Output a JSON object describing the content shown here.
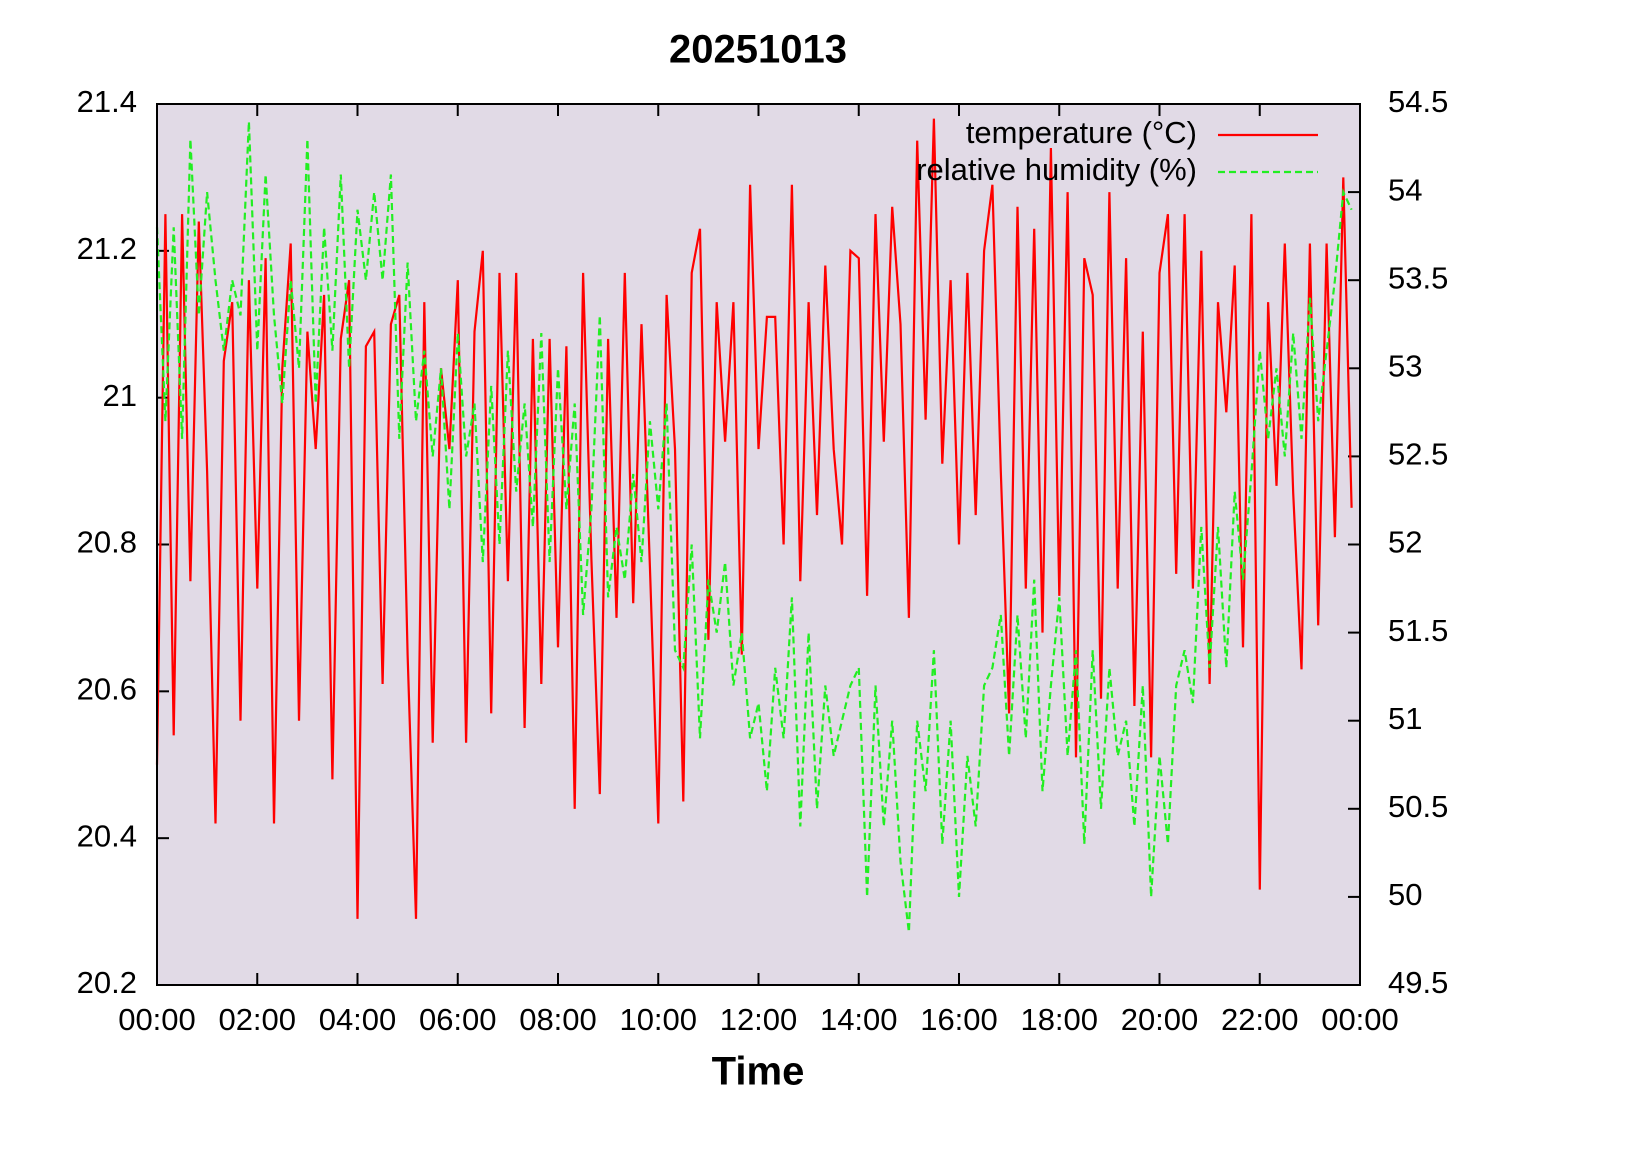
{
  "chart_data": {
    "type": "line",
    "title": "20251013",
    "xlabel": "Time",
    "legend": "upper right",
    "x": [
      "00:00",
      "00:10",
      "00:20",
      "00:30",
      "00:40",
      "00:50",
      "01:00",
      "01:10",
      "01:20",
      "01:30",
      "01:40",
      "01:50",
      "02:00",
      "02:10",
      "02:20",
      "02:30",
      "02:40",
      "02:50",
      "03:00",
      "03:10",
      "03:20",
      "03:30",
      "03:40",
      "03:50",
      "04:00",
      "04:10",
      "04:20",
      "04:30",
      "04:40",
      "04:50",
      "05:00",
      "05:10",
      "05:20",
      "05:30",
      "05:40",
      "05:50",
      "06:00",
      "06:10",
      "06:20",
      "06:30",
      "06:40",
      "06:50",
      "07:00",
      "07:10",
      "07:20",
      "07:30",
      "07:40",
      "07:50",
      "08:00",
      "08:10",
      "08:20",
      "08:30",
      "08:40",
      "08:50",
      "09:00",
      "09:10",
      "09:20",
      "09:30",
      "09:40",
      "09:50",
      "10:00",
      "10:10",
      "10:20",
      "10:30",
      "10:40",
      "10:50",
      "11:00",
      "11:10",
      "11:20",
      "11:30",
      "11:40",
      "11:50",
      "12:00",
      "12:10",
      "12:20",
      "12:30",
      "12:40",
      "12:50",
      "13:00",
      "13:10",
      "13:20",
      "13:30",
      "13:40",
      "13:50",
      "14:00",
      "14:10",
      "14:20",
      "14:30",
      "14:40",
      "14:50",
      "15:00",
      "15:10",
      "15:20",
      "15:30",
      "15:40",
      "15:50",
      "16:00",
      "16:10",
      "16:20",
      "16:30",
      "16:40",
      "16:50",
      "17:00",
      "17:10",
      "17:20",
      "17:30",
      "17:40",
      "17:50",
      "18:00",
      "18:10",
      "18:20",
      "18:30",
      "18:40",
      "18:50",
      "19:00",
      "19:10",
      "19:20",
      "19:30",
      "19:40",
      "19:50",
      "20:00",
      "20:10",
      "20:20",
      "20:30",
      "20:40",
      "20:50",
      "21:00",
      "21:10",
      "21:20",
      "21:30",
      "21:40",
      "21:50",
      "22:00",
      "22:10",
      "22:20",
      "22:30",
      "22:40",
      "22:50",
      "23:00",
      "23:10",
      "23:20",
      "23:30",
      "23:40",
      "23:50"
    ],
    "xlim": [
      "00:00",
      "24:00"
    ],
    "xticks": [
      "00:00",
      "02:00",
      "04:00",
      "06:00",
      "08:00",
      "10:00",
      "12:00",
      "14:00",
      "16:00",
      "18:00",
      "20:00",
      "22:00",
      {
        "value": "24:00",
        "label": "00:00"
      }
    ],
    "ylim": [
      20.2,
      21.4
    ],
    "yticks": [
      20.2,
      20.4,
      20.6,
      20.8,
      21,
      21.2,
      21.4
    ],
    "y2lim": [
      49.5,
      54.5
    ],
    "y2ticks": [
      49.5,
      50,
      50.5,
      51,
      51.5,
      52,
      52.5,
      53,
      53.5,
      54,
      54.5
    ],
    "series": [
      {
        "name": "temperature (°C)",
        "color": "#ff0000",
        "line_style": "solid",
        "values": [
          20.5,
          21.25,
          20.54,
          21.25,
          20.75,
          21.24,
          20.9,
          20.42,
          21.05,
          21.13,
          20.56,
          21.16,
          20.74,
          21.19,
          20.42,
          21.04,
          21.21,
          20.56,
          21.09,
          20.93,
          21.14,
          20.48,
          21.08,
          21.16,
          20.29,
          21.07,
          21.09,
          20.61,
          21.1,
          21.14,
          20.65,
          20.29,
          21.13,
          20.53,
          21.04,
          20.93,
          21.16,
          20.53,
          21.09,
          21.2,
          20.57,
          21.17,
          20.75,
          21.17,
          20.55,
          21.08,
          20.61,
          21.08,
          20.66,
          21.07,
          20.44,
          21.17,
          20.78,
          20.46,
          21.08,
          20.7,
          21.17,
          20.72,
          21.1,
          20.77,
          20.42,
          21.14,
          20.93,
          20.45,
          21.17,
          21.23,
          20.67,
          21.13,
          20.94,
          21.13,
          20.65,
          21.29,
          20.93,
          21.11,
          21.11,
          20.8,
          21.29,
          20.75,
          21.13,
          20.84,
          21.18,
          20.93,
          20.8,
          21.2,
          21.19,
          20.73,
          21.25,
          20.94,
          21.26,
          21.1,
          20.7,
          21.35,
          20.97,
          21.38,
          20.91,
          21.16,
          20.8,
          21.17,
          20.84,
          21.2,
          21.29,
          20.9,
          20.57,
          21.26,
          20.74,
          21.23,
          20.68,
          21.34,
          20.73,
          21.28,
          20.51,
          21.19,
          21.14,
          20.59,
          21.28,
          20.74,
          21.19,
          20.58,
          21.09,
          20.51,
          21.17,
          21.25,
          20.76,
          21.25,
          20.74,
          21.2,
          20.61,
          21.13,
          20.98,
          21.18,
          20.66,
          21.25,
          20.33,
          21.13,
          20.88,
          21.21,
          20.87,
          20.63,
          21.21,
          20.69,
          21.21,
          20.81,
          21.3,
          20.85
        ]
      },
      {
        "name": "relative humidity (%)",
        "color": "#22ee22",
        "line_style": "dashed",
        "axis": "y2",
        "values": [
          53.8,
          52.7,
          53.8,
          52.6,
          54.3,
          53.3,
          54.0,
          53.5,
          53.1,
          53.5,
          53.3,
          54.4,
          53.1,
          54.1,
          53.3,
          52.8,
          53.5,
          53.0,
          54.3,
          52.8,
          53.8,
          53.1,
          54.1,
          53.0,
          53.9,
          53.5,
          54.0,
          53.5,
          54.1,
          52.6,
          53.6,
          52.7,
          53.1,
          52.5,
          53.0,
          52.2,
          53.2,
          52.5,
          52.8,
          51.9,
          52.9,
          52.0,
          53.1,
          52.3,
          52.8,
          52.1,
          53.2,
          51.9,
          53.0,
          52.2,
          52.8,
          51.6,
          52.2,
          53.3,
          51.7,
          52.1,
          51.8,
          52.4,
          51.9,
          52.7,
          52.2,
          52.8,
          51.4,
          51.3,
          52.0,
          50.9,
          51.8,
          51.5,
          51.9,
          51.2,
          51.5,
          50.9,
          51.1,
          50.6,
          51.3,
          50.9,
          51.7,
          50.4,
          51.5,
          50.5,
          51.2,
          50.8,
          51.0,
          51.2,
          51.3,
          50.0,
          51.2,
          50.4,
          51.0,
          50.2,
          49.8,
          51.0,
          50.6,
          51.4,
          50.3,
          51.0,
          50.0,
          50.8,
          50.4,
          51.2,
          51.3,
          51.6,
          50.8,
          51.6,
          50.9,
          51.8,
          50.6,
          51.2,
          51.7,
          50.8,
          51.4,
          50.3,
          51.4,
          50.5,
          51.3,
          50.8,
          51.0,
          50.4,
          51.2,
          50.0,
          50.8,
          50.3,
          51.2,
          51.4,
          51.1,
          52.1,
          51.3,
          52.1,
          51.3,
          52.3,
          51.8,
          52.4,
          53.1,
          52.6,
          53.0,
          52.5,
          53.2,
          52.6,
          53.4,
          52.7,
          53.1,
          53.5,
          54.0,
          53.9
        ]
      }
    ]
  }
}
